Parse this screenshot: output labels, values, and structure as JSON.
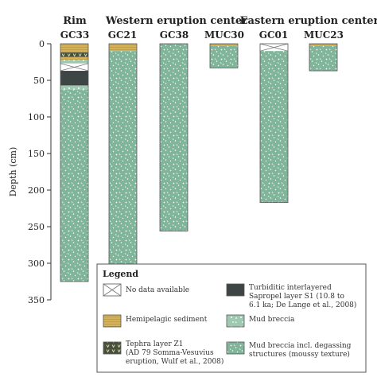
{
  "groups": [
    {
      "id": "rim",
      "label": "Rim"
    },
    {
      "id": "western",
      "label": "Western eruption center"
    },
    {
      "id": "eastern",
      "label": "Eastern eruption center"
    }
  ],
  "axis": {
    "label": "Depth (cm)",
    "min": 0,
    "max": 350,
    "ticks": [
      "0",
      "50",
      "100",
      "150",
      "200",
      "250",
      "300",
      "350"
    ]
  },
  "cores": [
    {
      "id": "GC33",
      "label": "GC33",
      "total_depth": 325,
      "layers": [
        {
          "type": "hemipelagic",
          "top": 0,
          "bottom": 12
        },
        {
          "type": "tephra",
          "top": 12,
          "bottom": 18
        },
        {
          "type": "hemipelagic",
          "top": 18,
          "bottom": 22
        },
        {
          "type": "mud_breccia",
          "top": 22,
          "bottom": 27
        },
        {
          "type": "no_data",
          "top": 27,
          "bottom": 37
        },
        {
          "type": "turbiditic",
          "top": 37,
          "bottom": 57
        },
        {
          "type": "mud_breccia",
          "top": 57,
          "bottom": 63
        },
        {
          "type": "mud_breccia_degassing",
          "top": 63,
          "bottom": 325
        }
      ]
    },
    {
      "id": "GC21",
      "label": "GC21",
      "total_depth": 302,
      "layers": [
        {
          "type": "hemipelagic",
          "top": 0,
          "bottom": 10
        },
        {
          "type": "mud_breccia_degassing",
          "top": 10,
          "bottom": 302
        }
      ]
    },
    {
      "id": "GC38",
      "label": "GC38",
      "total_depth": 256,
      "layers": [
        {
          "type": "mud_breccia_degassing",
          "top": 0,
          "bottom": 256
        }
      ]
    },
    {
      "id": "MUC30",
      "label": "MUC30",
      "total_depth": 33,
      "layers": [
        {
          "type": "hemipelagic",
          "top": 0,
          "bottom": 3
        },
        {
          "type": "mud_breccia_degassing",
          "top": 3,
          "bottom": 33
        }
      ]
    },
    {
      "id": "GC01",
      "label": "GC01",
      "total_depth": 217,
      "layers": [
        {
          "type": "no_data",
          "top": 0,
          "bottom": 10
        },
        {
          "type": "mud_breccia_degassing",
          "top": 10,
          "bottom": 217
        }
      ]
    },
    {
      "id": "MUC23",
      "label": "MUC23",
      "total_depth": 37,
      "layers": [
        {
          "type": "hemipelagic",
          "top": 0,
          "bottom": 3
        },
        {
          "type": "mud_breccia_degassing",
          "top": 3,
          "bottom": 37
        }
      ]
    }
  ],
  "legend": {
    "title": "Legend",
    "items": [
      {
        "key": "no_data",
        "lines": [
          "No data available"
        ]
      },
      {
        "key": "turbiditic",
        "lines": [
          "Turbiditic interlayered",
          "Sapropel layer S1 (10.8 to",
          "6.1 ka; De Lange et al., 2008)"
        ]
      },
      {
        "key": "hemipelagic",
        "lines": [
          "Hemipelagic sediment"
        ]
      },
      {
        "key": "mud_breccia",
        "lines": [
          "Mud breccia"
        ]
      },
      {
        "key": "tephra",
        "lines": [
          "Tephra layer Z1",
          "(AD 79 Somma-Vesuvius",
          "eruption, Wulf et al., 2008)"
        ]
      },
      {
        "key": "mud_breccia_degassing",
        "lines": [
          "Mud breccia incl. degassing",
          "structures (moussy texture)"
        ]
      }
    ]
  },
  "colors": {
    "hemipelagic": "#d3b25a",
    "tephra": "#47503a",
    "turbiditic": "#3d4545",
    "mud_breccia": "#9fc8b0",
    "mud_breccia_degassing": "#7fb69a",
    "no_data": "#ffffff",
    "outline": "#555555"
  }
}
